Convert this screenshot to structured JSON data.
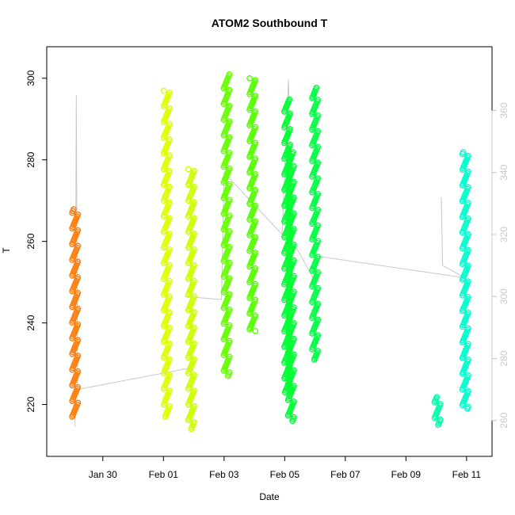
{
  "chart_data": {
    "type": "scatter",
    "title": "ATOM2 Southbound T",
    "xlabel": "Date",
    "ylabel": "T",
    "xlim": [
      "2025-01-28T13:00",
      "2025-02-11T12:00"
    ],
    "ylim": [
      210,
      305
    ],
    "y2lim": [
      252,
      377
    ],
    "x_ticks": [
      {
        "date": "2025-01-30",
        "label": "Jan 30"
      },
      {
        "date": "2025-02-01",
        "label": "Feb 01"
      },
      {
        "date": "2025-02-03",
        "label": "Feb 03"
      },
      {
        "date": "2025-02-05",
        "label": "Feb 05"
      },
      {
        "date": "2025-02-07",
        "label": "Feb 07"
      },
      {
        "date": "2025-02-09",
        "label": "Feb 09"
      },
      {
        "date": "2025-02-11",
        "label": "Feb 11"
      }
    ],
    "y_ticks": [
      220,
      240,
      260,
      280,
      300
    ],
    "y2_ticks": [
      260,
      280,
      300,
      320,
      340,
      360
    ],
    "axis_color": "#000000",
    "y2_axis_color": "#c8c8c8",
    "secondary_line_color": "#c8c8c8",
    "grid": false,
    "legend": "none",
    "series": [
      {
        "color": "#ff7f0e",
        "segments": [
          {
            "x": "2025-01-29T02:00",
            "ymin": 217,
            "ymax": 268
          }
        ]
      },
      {
        "color": "#ddff00",
        "segments": [
          {
            "x": "2025-02-01T02:30",
            "ymin": 217,
            "ymax": 297
          }
        ]
      },
      {
        "color": "#ccff00",
        "segments": [
          {
            "x": "2025-02-01T22:00",
            "ymin": 214,
            "ymax": 278
          }
        ]
      },
      {
        "color": "#66ff00",
        "segments": [
          {
            "x": "2025-02-03T02:00",
            "ymin": 227,
            "ymax": 301
          }
        ]
      },
      {
        "color": "#55ff00",
        "segments": [
          {
            "x": "2025-02-03T22:30",
            "ymin": 238,
            "ymax": 300
          }
        ]
      },
      {
        "color": "#00ff33",
        "segments": [
          {
            "x": "2025-02-05T02:00",
            "ymin": 223,
            "ymax": 295
          },
          {
            "x": "2025-02-05T05:00",
            "ymin": 216,
            "ymax": 282
          }
        ]
      },
      {
        "color": "#00ff44",
        "segments": [
          {
            "x": "2025-02-06T00:00",
            "ymin": 231,
            "ymax": 298
          }
        ]
      },
      {
        "color": "#00ffaa",
        "segments": [
          {
            "x": "2025-02-10T01:00",
            "ymin": 215,
            "ymax": 222
          }
        ]
      },
      {
        "color": "#00ffcc",
        "segments": [
          {
            "x": "2025-02-10T23:00",
            "ymin": 219,
            "ymax": 282
          }
        ]
      }
    ],
    "secondary_series": {
      "axis": "right",
      "points": [
        [
          "2025-01-29T02:00",
          258
        ],
        [
          "2025-01-29T03:00",
          365
        ],
        [
          "2025-01-29T04:00",
          270
        ],
        [
          "2025-02-01T22:00",
          277
        ],
        [
          "2025-02-01T23:00",
          300
        ],
        [
          "2025-02-01T18:00",
          300
        ],
        [
          "2025-02-01T17:00",
          300
        ],
        [
          "2025-02-02T22:00",
          299
        ],
        [
          "2025-02-03T00:00",
          340
        ],
        [
          "2025-02-04T22:00",
          320
        ],
        [
          "2025-02-05T03:00",
          370
        ],
        [
          "2025-02-05T06:00",
          318
        ],
        [
          "2025-02-06T00:00",
          305
        ],
        [
          "2025-02-06T02:00",
          313
        ],
        [
          "2025-02-10T23:00",
          306
        ],
        [
          "2025-02-10T05:00",
          310
        ],
        [
          "2025-02-10T04:00",
          332
        ]
      ]
    }
  }
}
